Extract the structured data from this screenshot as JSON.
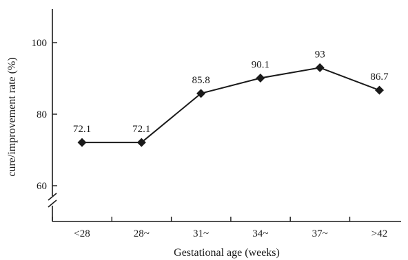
{
  "chart_data": {
    "type": "line",
    "categories": [
      "<28",
      "28~",
      "31~",
      "34~",
      "37~",
      ">42"
    ],
    "series": [
      {
        "values": [
          72.1,
          72.1,
          85.8,
          90.1,
          93,
          86.7
        ]
      }
    ],
    "data_labels": [
      "72.1",
      "72.1",
      "85.8",
      "90.1",
      "93",
      "86.7"
    ],
    "xlabel": "Gestational age (weeks)",
    "ylabel": "cure/improvement rate (%)",
    "yticks": [
      60,
      80,
      100
    ],
    "ytick_labels": [
      "60",
      "80",
      "100"
    ],
    "ylim": [
      50,
      110
    ],
    "axis_break": true,
    "grid": false,
    "marker": "diamond",
    "color": "#1a1a1a"
  }
}
